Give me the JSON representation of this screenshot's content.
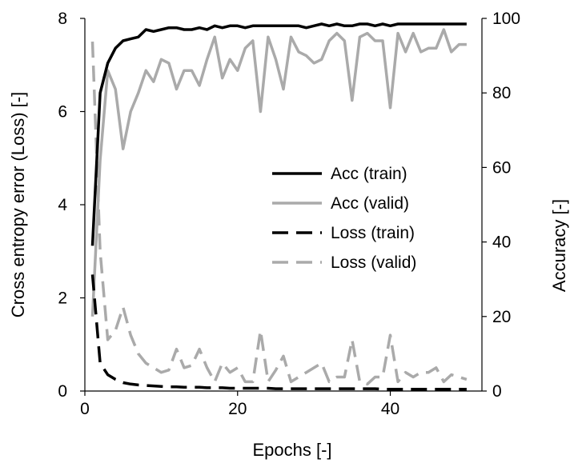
{
  "chart_data": {
    "type": "line",
    "xlabel": "Epochs [-]",
    "ylabel_left": "Cross entropy error (Loss) [-]",
    "ylabel_right": "Accuracy [-]",
    "xlim": [
      0,
      52
    ],
    "xticks": [
      0,
      20,
      40
    ],
    "ylim_left": [
      0,
      8
    ],
    "yticks_left": [
      0,
      2,
      4,
      6,
      8
    ],
    "ylim_right": [
      0,
      100
    ],
    "yticks_right": [
      0,
      20,
      40,
      60,
      80,
      100
    ],
    "grid": false,
    "legend_position": "center-right",
    "x": [
      1,
      2,
      3,
      4,
      5,
      6,
      7,
      8,
      9,
      10,
      11,
      12,
      13,
      14,
      15,
      16,
      17,
      18,
      19,
      20,
      21,
      22,
      23,
      24,
      25,
      26,
      27,
      28,
      29,
      30,
      31,
      32,
      33,
      34,
      35,
      36,
      37,
      38,
      39,
      40,
      41,
      42,
      43,
      44,
      45,
      46,
      47,
      48,
      49,
      50
    ],
    "series": [
      {
        "name": "Acc (train)",
        "axis": "right",
        "color": "#000000",
        "dash": "solid",
        "values": [
          39,
          80,
          88,
          92,
          94,
          94.5,
          95,
          97,
          96.5,
          97,
          97.5,
          97.5,
          97,
          97,
          97.5,
          97,
          98,
          97.5,
          98,
          98,
          97.5,
          98,
          98,
          98,
          98,
          98,
          98,
          98,
          97.5,
          98,
          98.5,
          98,
          98.5,
          98,
          98,
          98.5,
          98.5,
          98,
          98.5,
          98,
          98.5,
          98.5,
          98.5,
          98.5,
          98.5,
          98.5,
          98.5,
          98.5,
          98.5,
          98.5
        ]
      },
      {
        "name": "Acc (valid)",
        "axis": "right",
        "color": "#aaaaaa",
        "dash": "solid",
        "values": [
          20,
          62,
          86,
          81,
          65,
          75,
          80,
          86,
          83,
          89,
          88,
          81,
          86,
          86,
          82,
          89,
          95,
          84,
          89,
          86,
          92,
          94,
          75,
          95,
          89,
          81,
          95,
          91,
          90,
          88,
          89,
          94,
          96,
          94,
          78,
          95,
          96,
          94,
          94,
          76,
          96,
          91,
          96,
          91,
          92,
          92,
          97,
          91,
          93,
          93
        ]
      },
      {
        "name": "Loss (train)",
        "axis": "left",
        "color": "#000000",
        "dash": "dashed",
        "values": [
          2.5,
          0.6,
          0.35,
          0.25,
          0.18,
          0.15,
          0.13,
          0.12,
          0.11,
          0.1,
          0.09,
          0.09,
          0.08,
          0.08,
          0.08,
          0.07,
          0.07,
          0.07,
          0.06,
          0.06,
          0.06,
          0.06,
          0.06,
          0.06,
          0.05,
          0.05,
          0.05,
          0.05,
          0.05,
          0.05,
          0.05,
          0.05,
          0.05,
          0.05,
          0.05,
          0.05,
          0.05,
          0.05,
          0.04,
          0.04,
          0.04,
          0.04,
          0.04,
          0.04,
          0.04,
          0.04,
          0.04,
          0.04,
          0.04,
          0.04
        ]
      },
      {
        "name": "Loss (valid)",
        "axis": "left",
        "color": "#aaaaaa",
        "dash": "dashed",
        "values": [
          7.5,
          3,
          1.1,
          1.3,
          1.8,
          1.2,
          0.8,
          0.6,
          0.5,
          0.4,
          0.45,
          0.9,
          0.5,
          0.55,
          0.9,
          0.5,
          0.2,
          0.6,
          0.4,
          0.5,
          0.2,
          0.2,
          1.3,
          0.2,
          0.45,
          0.75,
          0.2,
          0.3,
          0.4,
          0.5,
          0.6,
          0.2,
          0.3,
          0.3,
          1.1,
          0.2,
          0.15,
          0.3,
          0.3,
          1.2,
          0.2,
          0.4,
          0.3,
          0.4,
          0.4,
          0.5,
          0.2,
          0.35,
          0.3,
          0.25
        ]
      }
    ]
  }
}
